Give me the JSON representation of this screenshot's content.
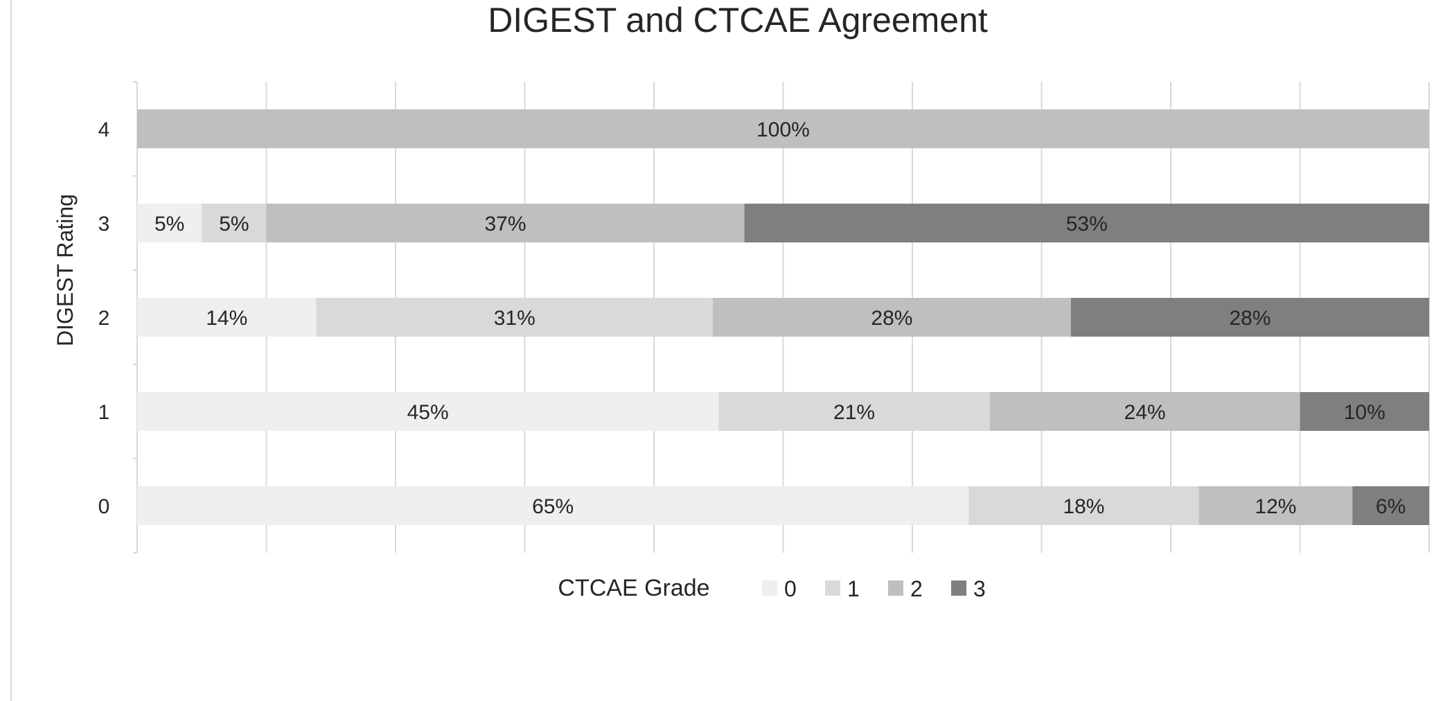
{
  "chart_data": {
    "type": "bar",
    "orientation": "horizontal",
    "stacked": "100%",
    "title": "DIGEST and CTCAE Agreement",
    "ylabel": "DIGEST Rating",
    "legend_title": "CTCAE Grade",
    "legend_position": "bottom",
    "grid": true,
    "categories": [
      "0",
      "1",
      "2",
      "3",
      "4"
    ],
    "series": [
      {
        "name": "0",
        "color": "#efefef",
        "values": [
          65,
          45,
          14,
          5,
          0
        ],
        "labels": [
          "65%",
          "45%",
          "14%",
          "5%",
          ""
        ]
      },
      {
        "name": "1",
        "color": "#d9d9d9",
        "values": [
          18,
          21,
          31,
          5,
          0
        ],
        "labels": [
          "18%",
          "21%",
          "31%",
          "5%",
          ""
        ]
      },
      {
        "name": "2",
        "color": "#bfbfbf",
        "values": [
          12,
          24,
          28,
          37,
          100
        ],
        "labels": [
          "12%",
          "24%",
          "28%",
          "37%",
          "100%"
        ]
      },
      {
        "name": "3",
        "color": "#7f7f7f",
        "values": [
          6,
          10,
          28,
          53,
          0
        ],
        "labels": [
          "6%",
          "10%",
          "28%",
          "53%",
          ""
        ]
      }
    ]
  }
}
